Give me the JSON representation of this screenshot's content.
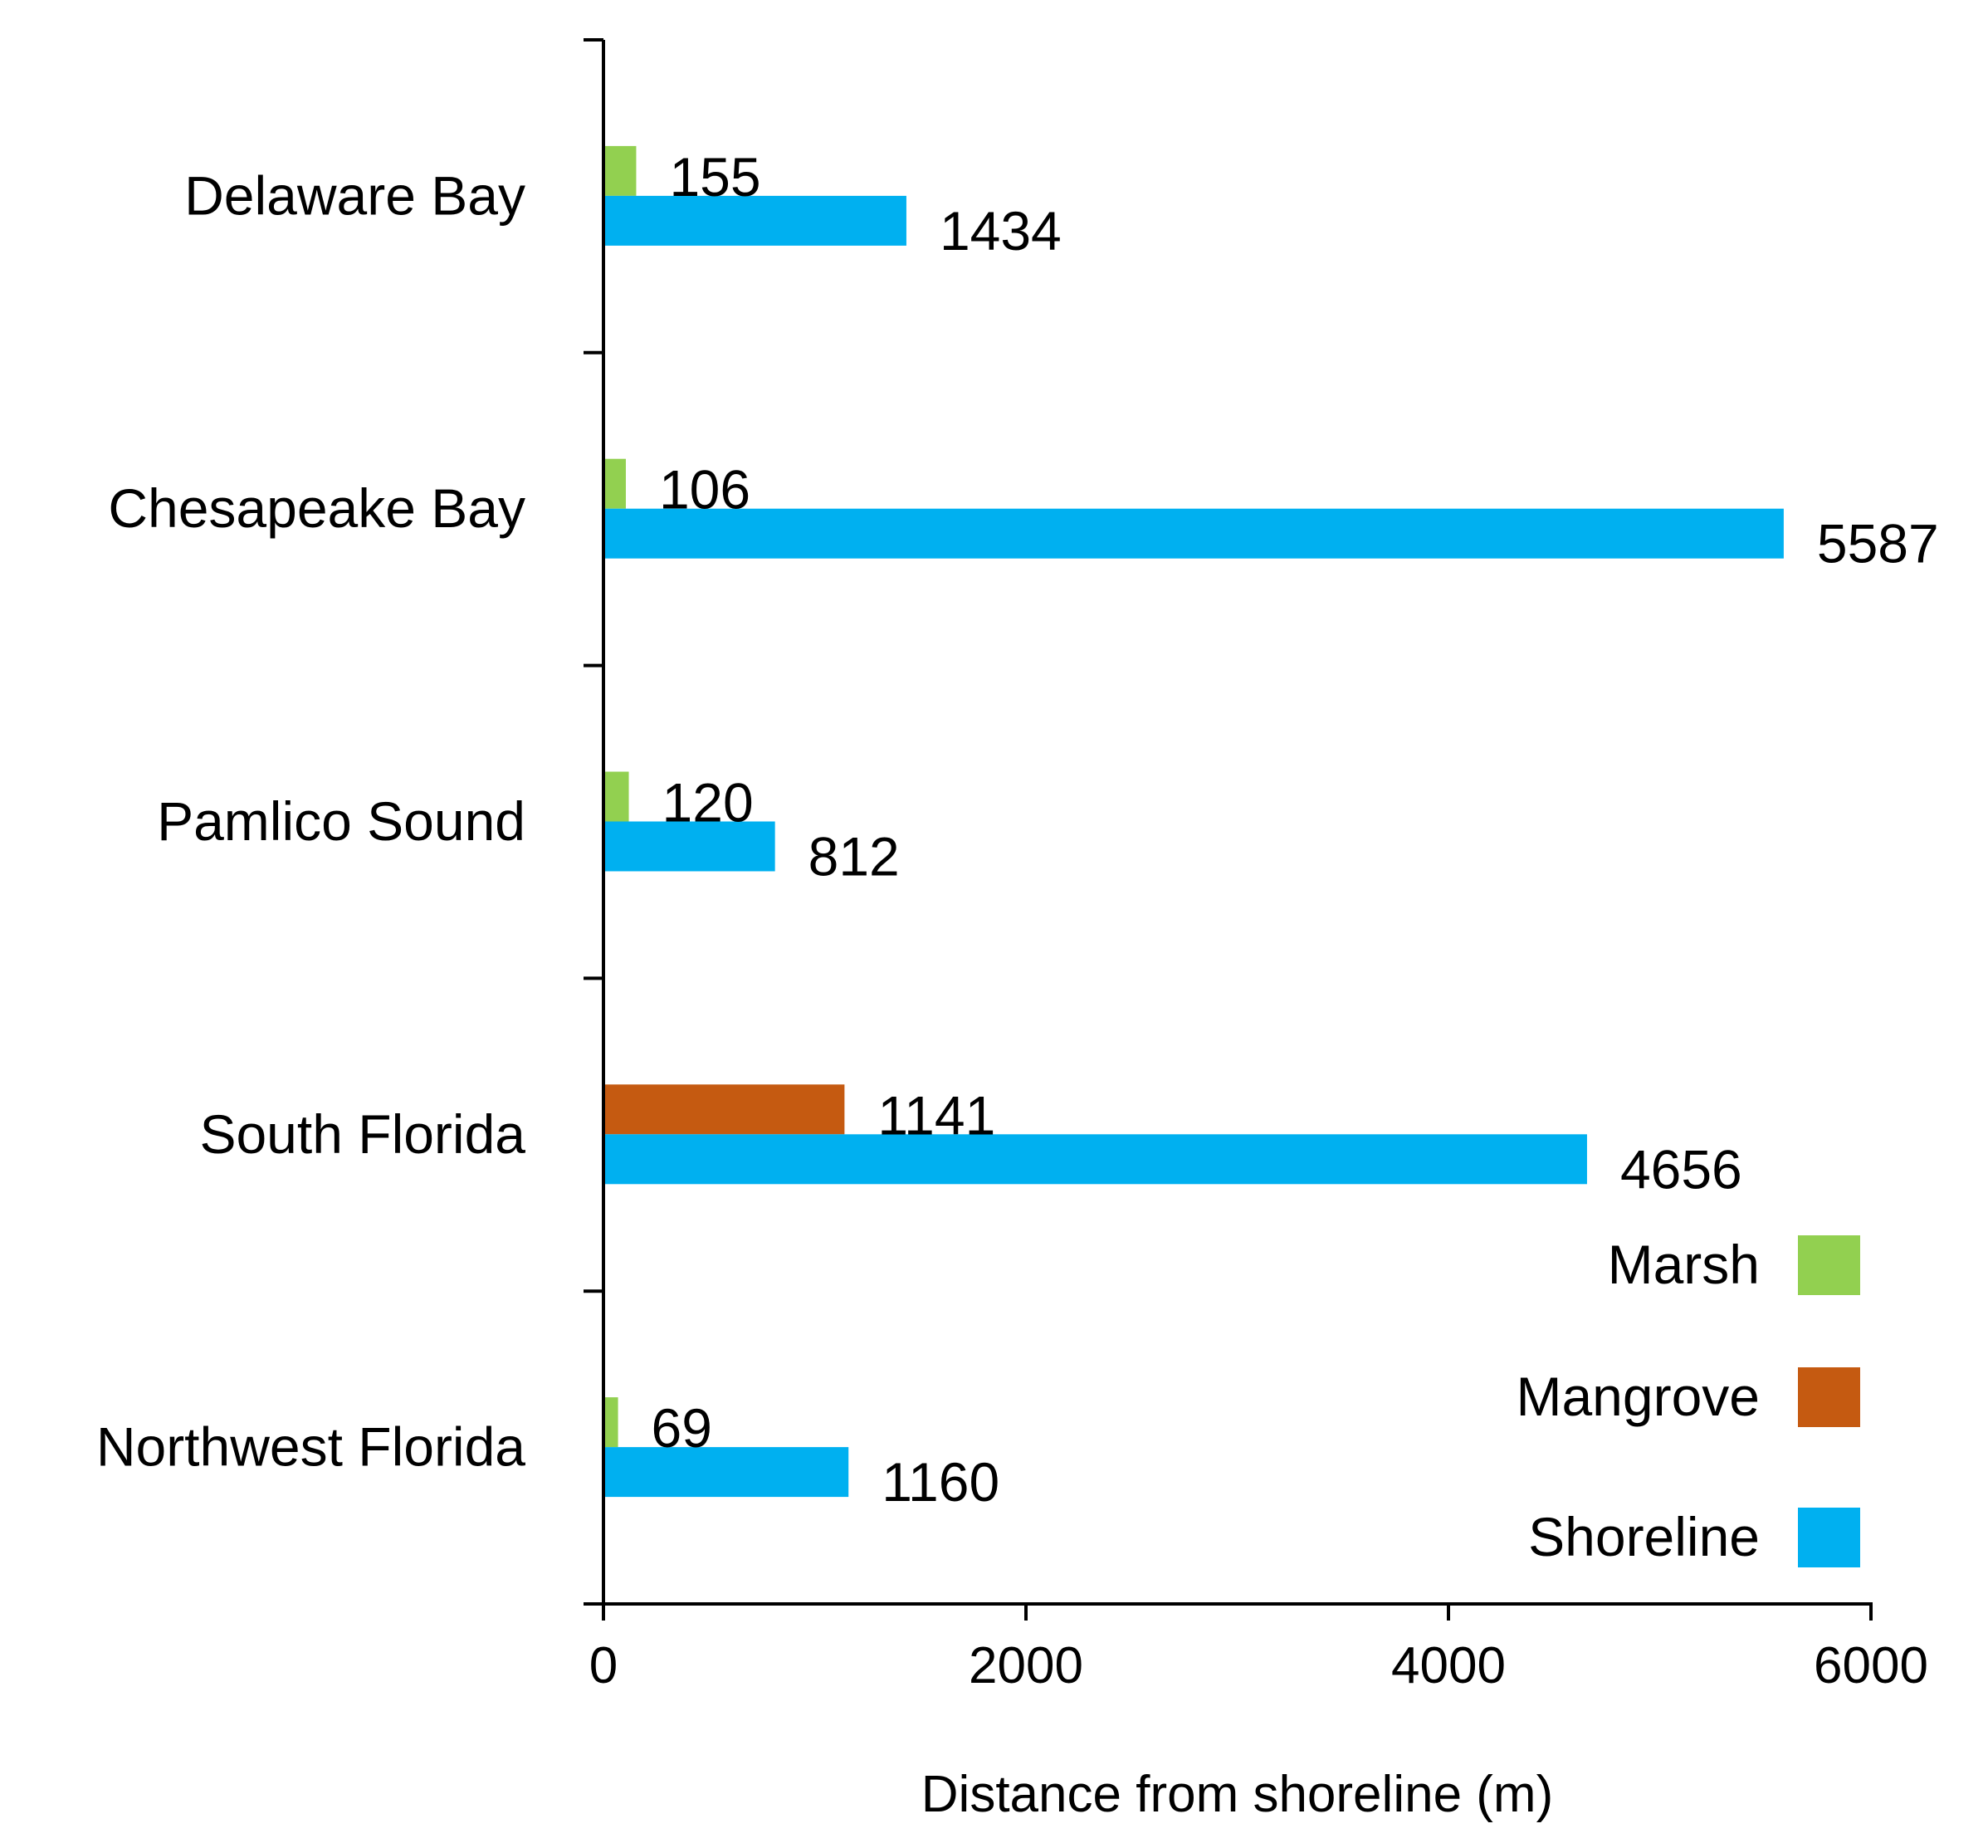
{
  "chart_data": {
    "type": "bar",
    "orientation": "horizontal",
    "title": "",
    "categories": [
      "Delaware Bay",
      "Chesapeake Bay",
      "Pamlico Sound",
      "South Florida",
      "Northwest Florida"
    ],
    "series": [
      {
        "name": "Marsh",
        "color": "#92d050",
        "values": [
          155,
          106,
          120,
          null,
          69
        ]
      },
      {
        "name": "Mangrove",
        "color": "#c55a11",
        "values": [
          null,
          null,
          null,
          1141,
          null
        ]
      },
      {
        "name": "Shoreline",
        "color": "#00b0f0",
        "values": [
          1434,
          5587,
          812,
          4656,
          1160
        ]
      }
    ],
    "xlabel": "Distance from shoreline (m)",
    "ylabel": "",
    "xlim": [
      0,
      6000
    ],
    "xticks": [
      0,
      2000,
      4000,
      6000
    ],
    "legend": {
      "position": "bottom-right",
      "entries": [
        "Marsh",
        "Mangrove",
        "Shoreline"
      ]
    }
  }
}
